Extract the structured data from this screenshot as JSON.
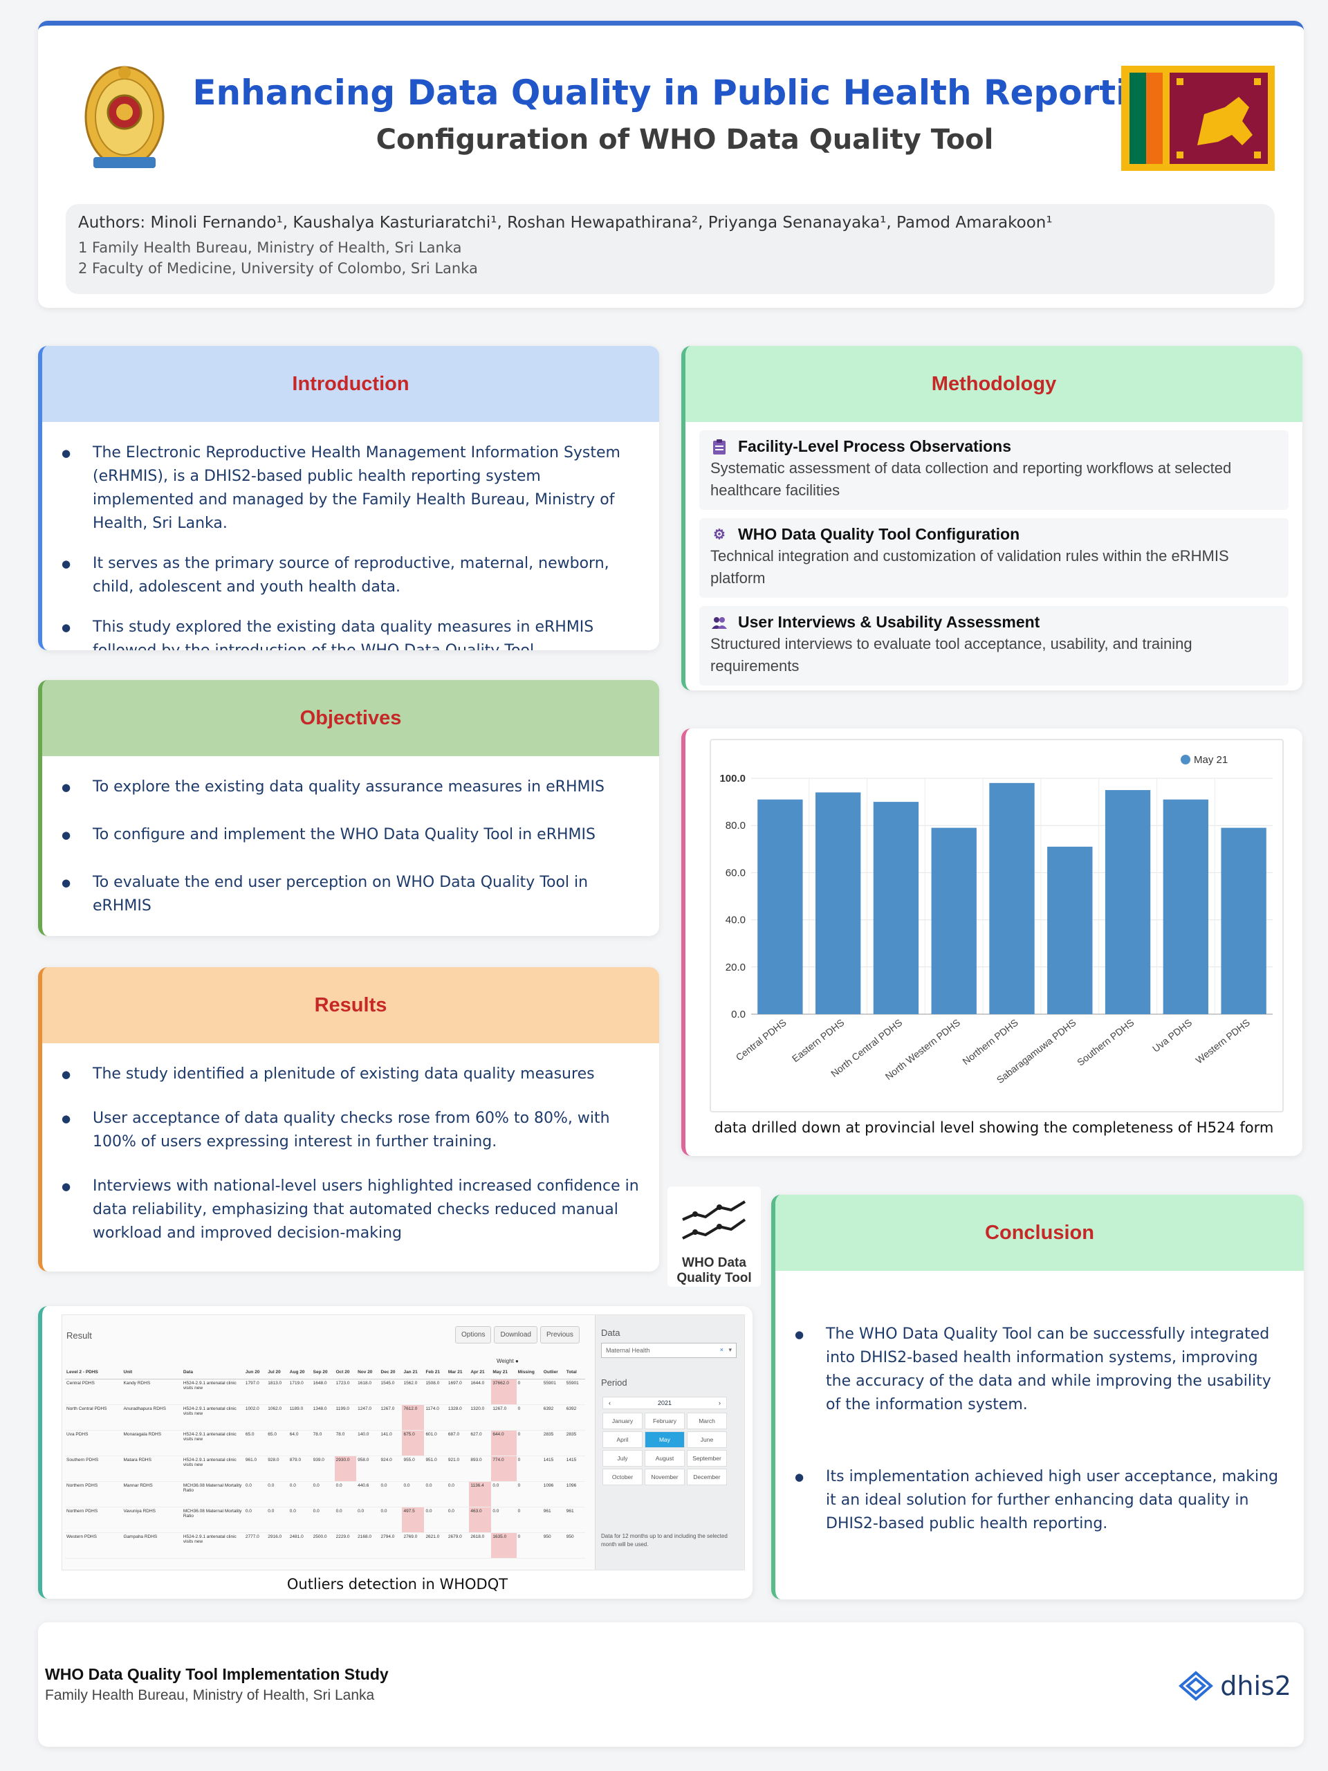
{
  "header": {
    "title": "Enhancing Data Quality in Public Health Reporting",
    "subtitle": "Configuration of WHO Data Quality Tool",
    "authors": "Authors: Minoli Fernando¹, Kaushalya Kasturiaratchi¹, Roshan Hewapathirana², Priyanga Senanayaka¹, Pamod Amarakoon¹",
    "affiliation_1": "1 Family Health Bureau, Ministry of Health, Sri Lanka",
    "affiliation_2": "2 Faculty of Medicine, University of Colombo, Sri Lanka"
  },
  "introduction": {
    "title": "Introduction",
    "items": [
      "The Electronic Reproductive Health Management Information System (eRHMIS), is a DHIS2-based public health reporting system implemented and managed by the Family Health Bureau, Ministry of Health, Sri Lanka.",
      "It serves as the primary source of reproductive, maternal, newborn, child, adolescent and youth health data.",
      "This study explored the existing data quality measures in eRHMIS followed by the introduction of the WHO Data Quality Tool."
    ]
  },
  "objectives": {
    "title": "Objectives",
    "items": [
      "To explore the existing data quality assurance measures in eRHMIS",
      "To configure and implement the WHO Data Quality Tool in eRHMIS",
      "To evaluate the end user perception on WHO Data Quality Tool in eRHMIS"
    ]
  },
  "results": {
    "title": "Results",
    "items": [
      "The study identified a plenitude of existing data quality measures",
      "User acceptance of data quality checks rose from 60% to 80%, with 100% of users expressing interest in further training.",
      "Interviews with national-level users highlighted increased confidence in data reliability, emphasizing that automated checks reduced manual workload and improved decision-making"
    ]
  },
  "methodology": {
    "title": "Methodology",
    "items": [
      {
        "icon": "clipboard-icon",
        "title": "Facility-Level Process Observations",
        "desc": "Systematic assessment of data collection and reporting workflows at selected healthcare facilities"
      },
      {
        "icon": "gear-icon",
        "title": "WHO Data Quality Tool Configuration",
        "desc": "Technical integration and customization of validation rules within the eRHMIS platform"
      },
      {
        "icon": "users-icon",
        "title": "User Interviews & Usability Assessment",
        "desc": "Structured interviews to evaluate tool acceptance, usability, and training requirements"
      }
    ]
  },
  "chart_data": {
    "type": "bar",
    "categories": [
      "Central PDHS",
      "Eastern PDHS",
      "North Central PDHS",
      "North Western PDHS",
      "Northern PDHS",
      "Sabaragamuwa PDHS",
      "Southern PDHS",
      "Uva PDHS",
      "Western PDHS"
    ],
    "series": [
      {
        "name": "May 21",
        "values": [
          91,
          94,
          90,
          79,
          98,
          71,
          95,
          91,
          79
        ]
      }
    ],
    "ylim": [
      0,
      100
    ],
    "yticks": [
      "0.0",
      "20.0",
      "40.0",
      "60.0",
      "80.0",
      "100.0"
    ],
    "legend": "top-right",
    "grid": true,
    "color": "#4e8fc7",
    "caption": "data drilled down at provincial level showing the completeness of H524 form"
  },
  "dqt_logo": {
    "line1": "WHO Data",
    "line2": "Quality Tool"
  },
  "conclusion": {
    "title": "Conclusion",
    "items": [
      "The WHO Data Quality Tool can be successfully integrated into DHIS2-based health information systems, improving the accuracy of the data and while improving the usability of the information system.",
      "Its implementation achieved high user acceptance, making it an ideal solution for further enhancing data quality in DHIS2-based public health reporting."
    ]
  },
  "outliers": {
    "caption": "Outliers detection in WHODQT",
    "result_label": "Result",
    "buttons": [
      "Options",
      "Download",
      "Previous"
    ],
    "side_data_label": "Data",
    "side_select": "Maternal Health",
    "period_label": "Period",
    "year": "2021",
    "months": [
      "January",
      "February",
      "March",
      "April",
      "May",
      "June",
      "July",
      "August",
      "September",
      "October",
      "November",
      "December"
    ],
    "note": "Data for 12 months up to and including the selected month will be used.",
    "weight_label": "Weight",
    "columns": [
      "Level 2 - PDHS",
      "Unit",
      "Data",
      "Jun 20",
      "Jul 20",
      "Aug 20",
      "Sep 20",
      "Oct 20",
      "Nov 20",
      "Dec 20",
      "Jan 21",
      "Feb 21",
      "Mar 21",
      "Apr 21",
      "May 21",
      "Missing",
      "Outlier",
      "Total"
    ],
    "rows": [
      [
        "Central PDHS",
        "Kandy RDHS",
        "H524-2.9.1 antenatal clinic visits new",
        "1797.0",
        "1813.0",
        "1719.0",
        "1648.0",
        "1723.0",
        "1618.0",
        "1545.0",
        "1562.0",
        "1508.0",
        "1697.0",
        "1644.0",
        "37662.0",
        "0",
        "55901",
        "55901"
      ],
      [
        "North Central PDHS",
        "Anuradhapura RDHS",
        "H524-2.9.1 antenatal clinic visits new",
        "1002.0",
        "1062.0",
        "1189.0",
        "1348.0",
        "1199.0",
        "1247.0",
        "1267.0",
        "7612.0",
        "1174.0",
        "1328.0",
        "1320.0",
        "1267.0",
        "0",
        "6392",
        "6392"
      ],
      [
        "Uva PDHS",
        "Monaragala RDHS",
        "H524-2.9.1 antenatal clinic visits new",
        "65.0",
        "65.0",
        "64.0",
        "78.0",
        "78.0",
        "140.0",
        "141.0",
        "675.0",
        "601.0",
        "687.0",
        "627.0",
        "644.0",
        "0",
        "2835",
        "2835"
      ],
      [
        "Southern PDHS",
        "Matara RDHS",
        "H524-2.9.1 antenatal clinic visits new",
        "961.0",
        "928.0",
        "879.0",
        "939.0",
        "2930.0",
        "958.0",
        "924.0",
        "955.0",
        "951.0",
        "921.0",
        "893.0",
        "774.0",
        "0",
        "1415",
        "1415"
      ],
      [
        "Northern PDHS",
        "Mannar RDHS",
        "MCH36.08 Maternal Mortality Ratio",
        "0.0",
        "0.0",
        "0.0",
        "0.0",
        "0.0",
        "440.6",
        "0.0",
        "0.0",
        "0.0",
        "0.0",
        "1136.4",
        "0.0",
        "0",
        "1096",
        "1096"
      ],
      [
        "Northern PDHS",
        "Vavuniya RDHS",
        "MCH36.08 Maternal Mortality Ratio",
        "0.0",
        "0.0",
        "0.0",
        "0.0",
        "0.0",
        "0.0",
        "0.0",
        "497.5",
        "0.0",
        "0.0",
        "463.0",
        "0.0",
        "0",
        "961",
        "961"
      ],
      [
        "Western PDHS",
        "Gampaha RDHS",
        "H524-2.9.1 antenatal clinic visits new",
        "2777.0",
        "2916.0",
        "2481.0",
        "2500.0",
        "2229.0",
        "2168.0",
        "2794.0",
        "2769.0",
        "2621.0",
        "2679.0",
        "2618.0",
        "1635.0",
        "0",
        "950",
        "950"
      ]
    ],
    "highlight": [
      [
        0,
        11
      ],
      [
        1,
        7
      ],
      [
        2,
        7
      ],
      [
        2,
        11
      ],
      [
        3,
        4
      ],
      [
        3,
        11
      ],
      [
        4,
        10
      ],
      [
        5,
        7
      ],
      [
        5,
        10
      ],
      [
        6,
        11
      ]
    ]
  },
  "footer": {
    "title": "WHO Data Quality Tool Implementation Study",
    "subtitle": "Family Health Bureau, Ministry of Health, Sri Lanka",
    "logo_text": "dhis2"
  }
}
